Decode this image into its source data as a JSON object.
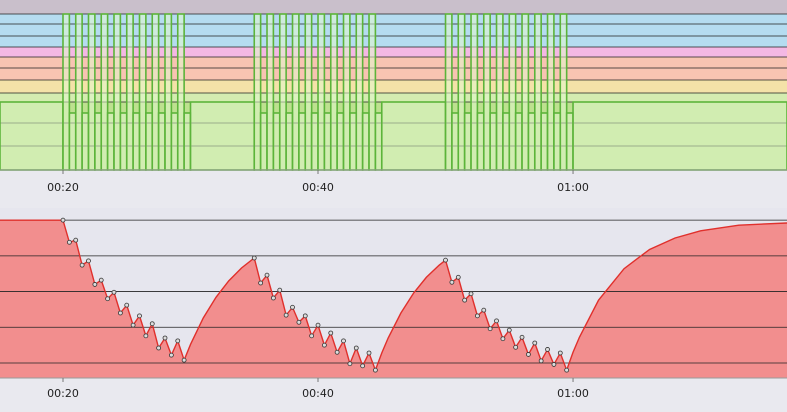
{
  "chart_data": [
    {
      "type": "step",
      "xlim": [
        15.06,
        76.78
      ],
      "ylim": [
        0,
        340
      ],
      "xticks": [
        {
          "value": 20,
          "label": "00:20"
        },
        {
          "value": 40,
          "label": "00:40"
        },
        {
          "value": 60,
          "label": "01:00"
        }
      ],
      "zones": [
        {
          "from": 312,
          "to": 340,
          "color": "#c9bfcb"
        },
        {
          "from": 246,
          "to": 312,
          "color": "#b5dcf0"
        },
        {
          "from": 226,
          "to": 246,
          "color": "#f4b8e4"
        },
        {
          "from": 180,
          "to": 226,
          "color": "#f8c4b2"
        },
        {
          "from": 154,
          "to": 180,
          "color": "#f4e2a8"
        },
        {
          "from": 136,
          "to": 154,
          "color": "#d4ecb0"
        },
        {
          "from": 0,
          "to": 136,
          "color": "#bde18f"
        }
      ],
      "grid_lines": [
        312,
        292,
        268,
        246,
        226,
        204,
        180,
        154,
        136,
        94,
        48
      ],
      "color": "#5cb43a",
      "fill": "rgba(225,248,205,0.55)",
      "x": [
        15.06,
        20,
        20.5,
        21,
        21.5,
        22,
        22.5,
        23,
        23.5,
        24,
        24.5,
        25,
        25.5,
        26,
        26.5,
        27,
        27.5,
        28,
        28.5,
        29,
        29.5,
        30,
        35,
        35.5,
        36,
        36.5,
        37,
        37.5,
        38,
        38.5,
        39,
        39.5,
        40,
        40.5,
        41,
        41.5,
        42,
        42.5,
        43,
        43.5,
        44,
        44.5,
        45,
        50,
        50.5,
        51,
        51.5,
        52,
        52.5,
        53,
        53.5,
        54,
        54.5,
        55,
        55.5,
        56,
        56.5,
        57,
        57.5,
        58,
        58.5,
        59,
        59.5,
        60
      ],
      "values": [
        136,
        312,
        114,
        312,
        114,
        312,
        114,
        312,
        114,
        312,
        114,
        312,
        114,
        312,
        114,
        312,
        114,
        312,
        114,
        312,
        114,
        136,
        312,
        114,
        312,
        114,
        312,
        114,
        312,
        114,
        312,
        114,
        312,
        114,
        312,
        114,
        312,
        114,
        312,
        114,
        312,
        114,
        136,
        312,
        114,
        312,
        114,
        312,
        114,
        312,
        114,
        312,
        114,
        312,
        114,
        312,
        114,
        312,
        114,
        312,
        114,
        312,
        114,
        136
      ]
    },
    {
      "type": "area",
      "xlim": [
        15.06,
        76.78
      ],
      "ylim": [
        -2.1,
        21.7
      ],
      "xticks": [
        {
          "value": 20,
          "label": "00:20"
        },
        {
          "value": 40,
          "label": "00:40"
        },
        {
          "value": 60,
          "label": "01:00"
        }
      ],
      "grid_lines": [
        0,
        5,
        10,
        15,
        20
      ],
      "color": "#e0302c",
      "fill": "#f28e8e",
      "intervals": [
        [
          20,
          29.5
        ],
        [
          35,
          44.5
        ],
        [
          50,
          59.5
        ]
      ],
      "x": [
        15.06,
        20,
        20.5,
        21,
        21.5,
        22,
        22.5,
        23,
        23.5,
        24,
        24.5,
        25,
        25.5,
        26,
        26.5,
        27,
        27.5,
        28,
        28.5,
        29,
        29.5,
        30,
        31,
        32,
        33,
        34,
        35,
        35.5,
        36,
        36.5,
        37,
        37.5,
        38,
        38.5,
        39,
        39.5,
        40,
        40.5,
        41,
        41.5,
        42,
        42.5,
        43,
        43.5,
        44,
        44.5,
        45,
        45.5,
        46.5,
        47.5,
        48.5,
        49.5,
        50,
        50.5,
        51,
        51.5,
        52,
        52.5,
        53,
        53.5,
        54,
        54.5,
        55,
        55.5,
        56,
        56.5,
        57,
        57.5,
        58,
        58.5,
        59,
        59.5,
        60,
        60.5,
        62,
        64,
        66,
        68,
        70,
        73,
        76.78
      ],
      "values": [
        20,
        20,
        16.9,
        17.2,
        13.7,
        14.3,
        11.0,
        11.6,
        9.0,
        9.9,
        7.0,
        8.1,
        5.3,
        6.6,
        3.8,
        5.5,
        2.1,
        3.5,
        1.1,
        3.1,
        0.4,
        2.6,
        6.3,
        9.2,
        11.5,
        13.3,
        14.7,
        11.2,
        12.3,
        9.1,
        10.2,
        6.7,
        7.8,
        5.7,
        6.6,
        3.8,
        5.3,
        2.5,
        4.2,
        1.5,
        3.1,
        -0.1,
        2.1,
        -0.4,
        1.4,
        -1.0,
        1.4,
        3.5,
        7.0,
        9.8,
        12.0,
        13.7,
        14.4,
        11.3,
        12.0,
        8.8,
        9.7,
        6.6,
        7.4,
        4.8,
        5.9,
        3.4,
        4.6,
        2.2,
        3.6,
        1.2,
        2.8,
        0.3,
        1.9,
        -0.2,
        1.4,
        -1.0,
        1.5,
        3.6,
        8.8,
        13.2,
        15.9,
        17.5,
        18.5,
        19.3,
        19.6
      ]
    }
  ]
}
